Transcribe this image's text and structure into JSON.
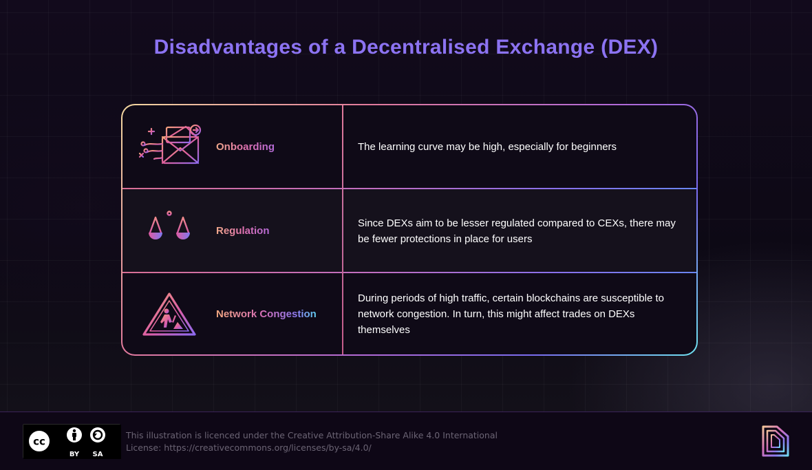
{
  "title": "Disadvantages of a Decentralised Exchange (DEX)",
  "rows": [
    {
      "label": "Onboarding",
      "icon": "envelope-icon",
      "description": "The learning curve may be high, especially for beginners"
    },
    {
      "label": "Regulation",
      "icon": "scales-icon",
      "description": "Since DEXs aim to be lesser regulated compared to CEXs, there may be fewer protections in place for users"
    },
    {
      "label": "Network Congestion",
      "icon": "construction-warning-icon",
      "description": "During periods of high traffic, certain blockchains are susceptible to network congestion. In turn, this might affect trades on DEXs themselves"
    }
  ],
  "footer": {
    "badge": {
      "by": "BY",
      "sa": "SA"
    },
    "license_line1": "This illustration is licenced under the Creative Attribution-Share Alike 4.0 International",
    "license_line2": "License: https://creativecommons.org/licenses/by-sa/4.0/"
  },
  "colors": {
    "title": "#8c73f2",
    "accent_pink": "#e071b0",
    "accent_cyan": "#6fe3f0"
  }
}
